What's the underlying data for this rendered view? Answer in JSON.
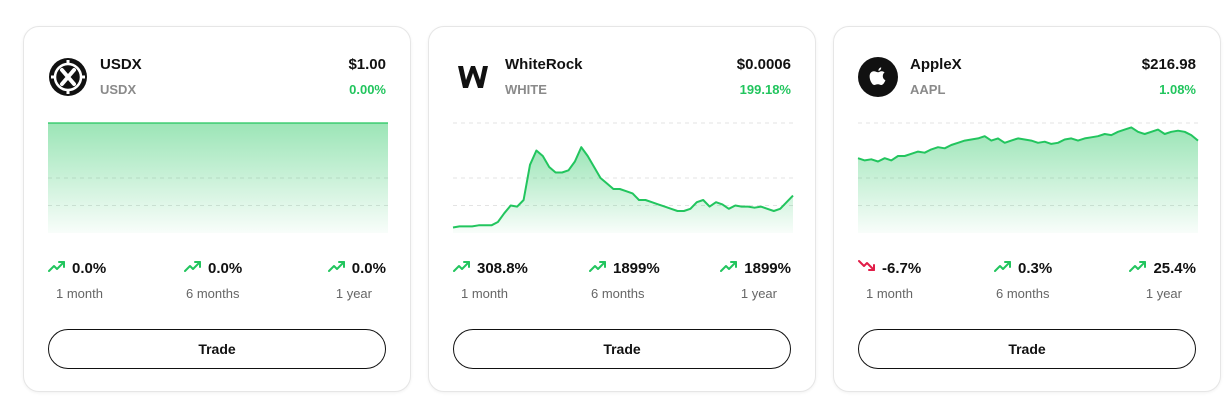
{
  "colors": {
    "positive": "#22c55e",
    "negative": "#e11d48",
    "line": "#22c55e"
  },
  "cards": [
    {
      "name": "USDX",
      "symbol": "USDX",
      "price": "$1.00",
      "change": "0.00%",
      "logo_icon": "usdx-x-logo-icon",
      "stats": [
        {
          "value": "0.0%",
          "label": "1 month",
          "trend": "up"
        },
        {
          "value": "0.0%",
          "label": "6 months",
          "trend": "up"
        },
        {
          "value": "0.0%",
          "label": "1 year",
          "trend": "up"
        }
      ],
      "trade_label": "Trade",
      "chart_data": {
        "type": "area",
        "values": [
          1,
          1,
          1,
          1,
          1,
          1,
          1,
          1,
          1,
          1,
          1,
          1,
          1,
          1,
          1,
          1,
          1,
          1,
          1,
          1
        ],
        "ylim": [
          0,
          1
        ],
        "grid": true
      }
    },
    {
      "name": "WhiteRock",
      "symbol": "WHITE",
      "price": "$0.0006",
      "change": "199.18%",
      "logo_icon": "whiterock-w-logo-icon",
      "stats": [
        {
          "value": "308.8%",
          "label": "1 month",
          "trend": "up"
        },
        {
          "value": "1899%",
          "label": "6 months",
          "trend": "up"
        },
        {
          "value": "1899%",
          "label": "1 year",
          "trend": "up"
        }
      ],
      "trade_label": "Trade",
      "chart_data": {
        "type": "area",
        "values": [
          5,
          6,
          6,
          6,
          7,
          7,
          7,
          10,
          18,
          25,
          24,
          30,
          62,
          75,
          70,
          60,
          55,
          55,
          57,
          65,
          78,
          70,
          60,
          50,
          45,
          40,
          40,
          38,
          36,
          30,
          30,
          28,
          26,
          24,
          22,
          20,
          20,
          22,
          28,
          30,
          24,
          28,
          26,
          22,
          25,
          24,
          24,
          23,
          24,
          22,
          20,
          22,
          28,
          34
        ],
        "ylim": [
          0,
          100
        ],
        "grid": true
      }
    },
    {
      "name": "AppleX",
      "symbol": "AAPL",
      "price": "$216.98",
      "change": "1.08%",
      "logo_icon": "apple-logo-icon",
      "stats": [
        {
          "value": "-6.7%",
          "label": "1 month",
          "trend": "down"
        },
        {
          "value": "0.3%",
          "label": "6 months",
          "trend": "up"
        },
        {
          "value": "25.4%",
          "label": "1 year",
          "trend": "up"
        }
      ],
      "trade_label": "Trade",
      "chart_data": {
        "type": "area",
        "values": [
          68,
          66,
          67,
          65,
          68,
          66,
          70,
          70,
          72,
          74,
          73,
          76,
          78,
          77,
          80,
          82,
          84,
          85,
          86,
          88,
          84,
          86,
          82,
          84,
          86,
          85,
          84,
          82,
          83,
          81,
          82,
          85,
          86,
          84,
          86,
          87,
          88,
          90,
          89,
          92,
          94,
          96,
          92,
          90,
          92,
          94,
          90,
          92,
          93,
          92,
          89,
          84
        ],
        "ylim": [
          0,
          100
        ],
        "grid": true
      }
    }
  ]
}
